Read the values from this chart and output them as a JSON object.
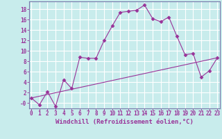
{
  "title": "",
  "xlabel": "Windchill (Refroidissement éolien,°C)",
  "ylabel": "",
  "background_color": "#c8ecec",
  "line_color": "#993399",
  "grid_color": "#ffffff",
  "spine_color": "#7777aa",
  "x_ticks": [
    0,
    1,
    2,
    3,
    4,
    5,
    6,
    7,
    8,
    9,
    10,
    11,
    12,
    13,
    14,
    15,
    16,
    17,
    18,
    19,
    20,
    21,
    22,
    23
  ],
  "y_ticks": [
    0,
    2,
    4,
    6,
    8,
    10,
    12,
    14,
    16,
    18
  ],
  "y_tick_labels": [
    "-0",
    "2",
    "4",
    "6",
    "8",
    "10",
    "12",
    "14",
    "16",
    "18"
  ],
  "ylim": [
    -1.0,
    19.5
  ],
  "xlim": [
    -0.3,
    23.3
  ],
  "series1_x": [
    0,
    1,
    2,
    3,
    4,
    5,
    6,
    7,
    8,
    9,
    10,
    11,
    12,
    13,
    14,
    15,
    16,
    17,
    18,
    19,
    20,
    21,
    22,
    23
  ],
  "series1_y": [
    1.0,
    -0.3,
    2.2,
    -0.6,
    4.5,
    2.8,
    8.8,
    8.6,
    8.6,
    12.0,
    14.8,
    17.4,
    17.6,
    17.8,
    18.8,
    16.2,
    15.6,
    16.5,
    12.8,
    9.3,
    9.5,
    5.0,
    6.2,
    8.7
  ],
  "series2_x": [
    0,
    23
  ],
  "series2_y": [
    1.0,
    8.7
  ],
  "tick_fontsize": 5.5,
  "xlabel_fontsize": 6.5
}
